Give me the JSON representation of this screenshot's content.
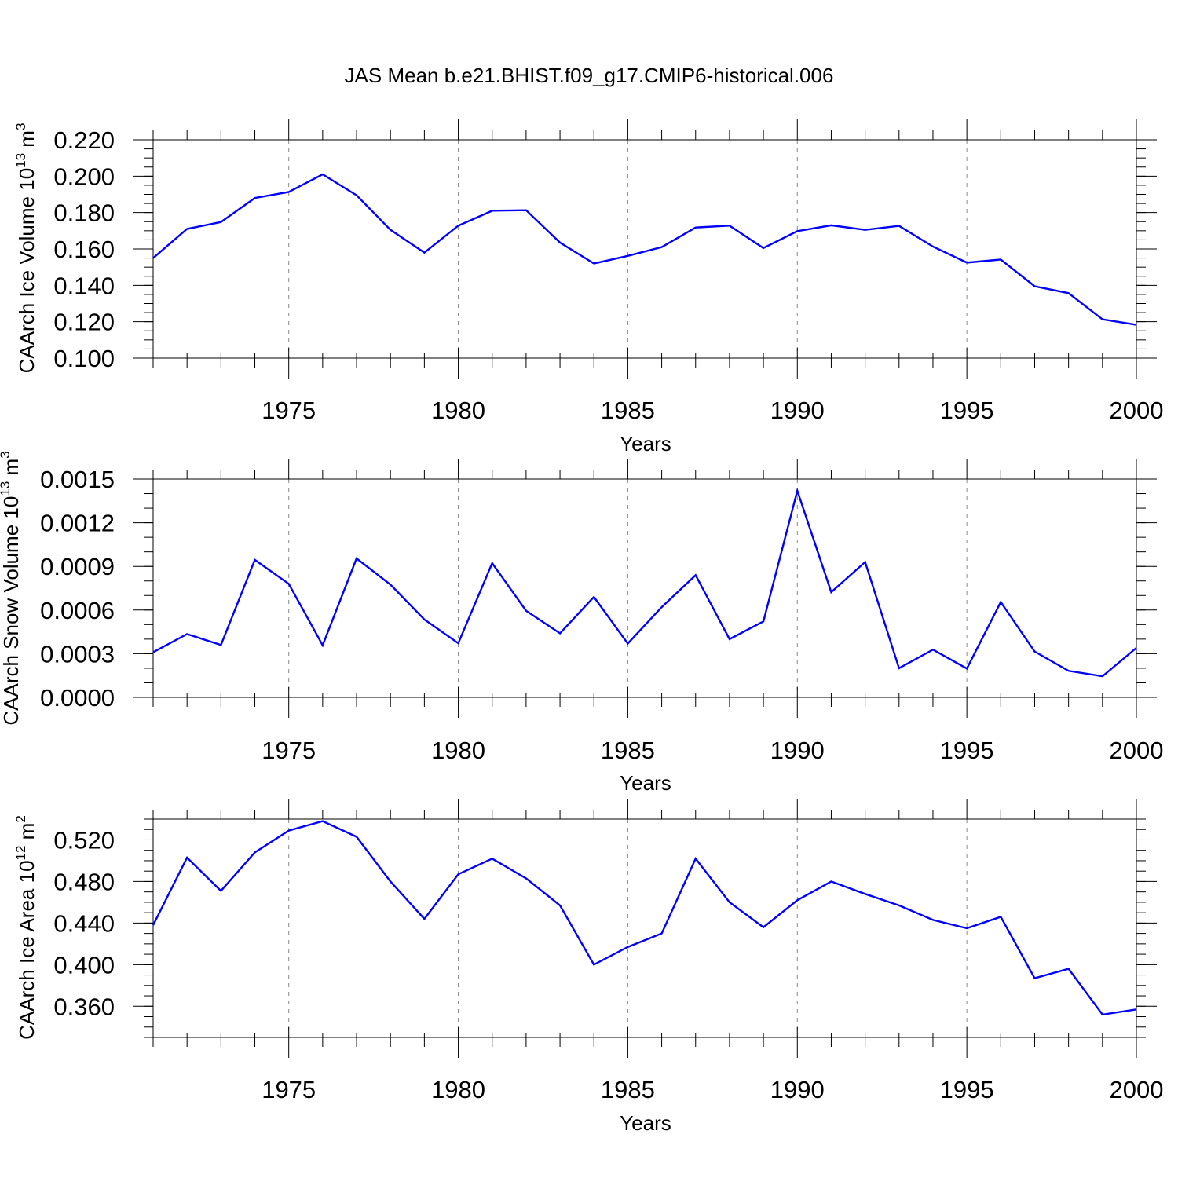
{
  "title": "JAS Mean b.e21.BHIST.f09_g17.CMIP6-historical.006",
  "colors": {
    "line": "#0000ff",
    "grid": "#888888",
    "axis": "#000000"
  },
  "chart_data": [
    {
      "type": "line",
      "ylabel": "CAArch Ice Volume 10",
      "ylabel_sup": "13",
      "ylabel_unit": " m",
      "ylabel_unit_sup": "3",
      "xlabel": "Years",
      "xlim": [
        1971,
        2000
      ],
      "ylim": [
        0.1,
        0.22
      ],
      "yticks": [
        "0.100",
        "0.120",
        "0.140",
        "0.160",
        "0.180",
        "0.200",
        "0.220"
      ],
      "yminor_step": 0.005,
      "xticks": [
        "1975",
        "1980",
        "1985",
        "1990",
        "1995",
        "2000"
      ],
      "grid": "x-major dashed",
      "x": [
        1971,
        1972,
        1973,
        1974,
        1975,
        1976,
        1977,
        1978,
        1979,
        1980,
        1981,
        1982,
        1983,
        1984,
        1985,
        1986,
        1987,
        1988,
        1989,
        1990,
        1991,
        1992,
        1993,
        1994,
        1995,
        1996,
        1997,
        1998,
        1999,
        2000
      ],
      "values": [
        0.155,
        0.171,
        0.1748,
        0.188,
        0.1913,
        0.201,
        0.1895,
        0.1705,
        0.158,
        0.1728,
        0.181,
        0.1813,
        0.1635,
        0.152,
        0.1562,
        0.161,
        0.1718,
        0.1728,
        0.1605,
        0.1698,
        0.173,
        0.1705,
        0.1727,
        0.1613,
        0.1525,
        0.1542,
        0.1395,
        0.1357,
        0.1213,
        0.1183
      ]
    },
    {
      "type": "line",
      "ylabel": "CAArch Snow Volume 10",
      "ylabel_sup": "13",
      "ylabel_unit": " m",
      "ylabel_unit_sup": "3",
      "xlabel": "Years",
      "xlim": [
        1971,
        2000
      ],
      "ylim": [
        0.0,
        0.0015
      ],
      "yticks": [
        "0.0000",
        "0.0003",
        "0.0006",
        "0.0009",
        "0.0012",
        "0.0015"
      ],
      "yminor_step": 0.0001,
      "xticks": [
        "1975",
        "1980",
        "1985",
        "1990",
        "1995",
        "2000"
      ],
      "grid": "x-major dashed",
      "x": [
        1971,
        1972,
        1973,
        1974,
        1975,
        1976,
        1977,
        1978,
        1979,
        1980,
        1981,
        1982,
        1983,
        1984,
        1985,
        1986,
        1987,
        1988,
        1989,
        1990,
        1991,
        1992,
        1993,
        1994,
        1995,
        1996,
        1997,
        1998,
        1999,
        2000
      ],
      "values": [
        0.00031,
        0.000435,
        0.00036,
        0.000945,
        0.00078,
        0.000358,
        0.000955,
        0.000775,
        0.000535,
        0.000372,
        0.000922,
        0.000595,
        0.00044,
        0.00069,
        0.00037,
        0.00062,
        0.00084,
        0.0004,
        0.000522,
        0.00142,
        0.000723,
        0.00093,
        0.0002,
        0.000328,
        0.000198,
        0.000655,
        0.000315,
        0.000182,
        0.000145,
        0.00034
      ]
    },
    {
      "type": "line",
      "ylabel": "CAArch Ice Area 10",
      "ylabel_sup": "12",
      "ylabel_unit": " m",
      "ylabel_unit_sup": "2",
      "xlabel": "Years",
      "xlim": [
        1971,
        2000
      ],
      "ylim": [
        0.33,
        0.54
      ],
      "yticks": [
        "0.360",
        "0.400",
        "0.440",
        "0.480",
        "0.520"
      ],
      "yminor_step": 0.01,
      "xticks": [
        "1975",
        "1980",
        "1985",
        "1990",
        "1995",
        "2000"
      ],
      "grid": "x-major dashed",
      "x": [
        1971,
        1972,
        1973,
        1974,
        1975,
        1976,
        1977,
        1978,
        1979,
        1980,
        1981,
        1982,
        1983,
        1984,
        1985,
        1986,
        1987,
        1988,
        1989,
        1990,
        1991,
        1992,
        1993,
        1994,
        1995,
        1996,
        1997,
        1998,
        1999,
        2000
      ],
      "values": [
        0.438,
        0.503,
        0.471,
        0.508,
        0.529,
        0.538,
        0.523,
        0.48,
        0.444,
        0.487,
        0.502,
        0.483,
        0.457,
        0.4,
        0.417,
        0.43,
        0.502,
        0.46,
        0.436,
        0.462,
        0.48,
        0.468,
        0.457,
        0.443,
        0.435,
        0.446,
        0.387,
        0.396,
        0.352,
        0.357
      ]
    }
  ]
}
